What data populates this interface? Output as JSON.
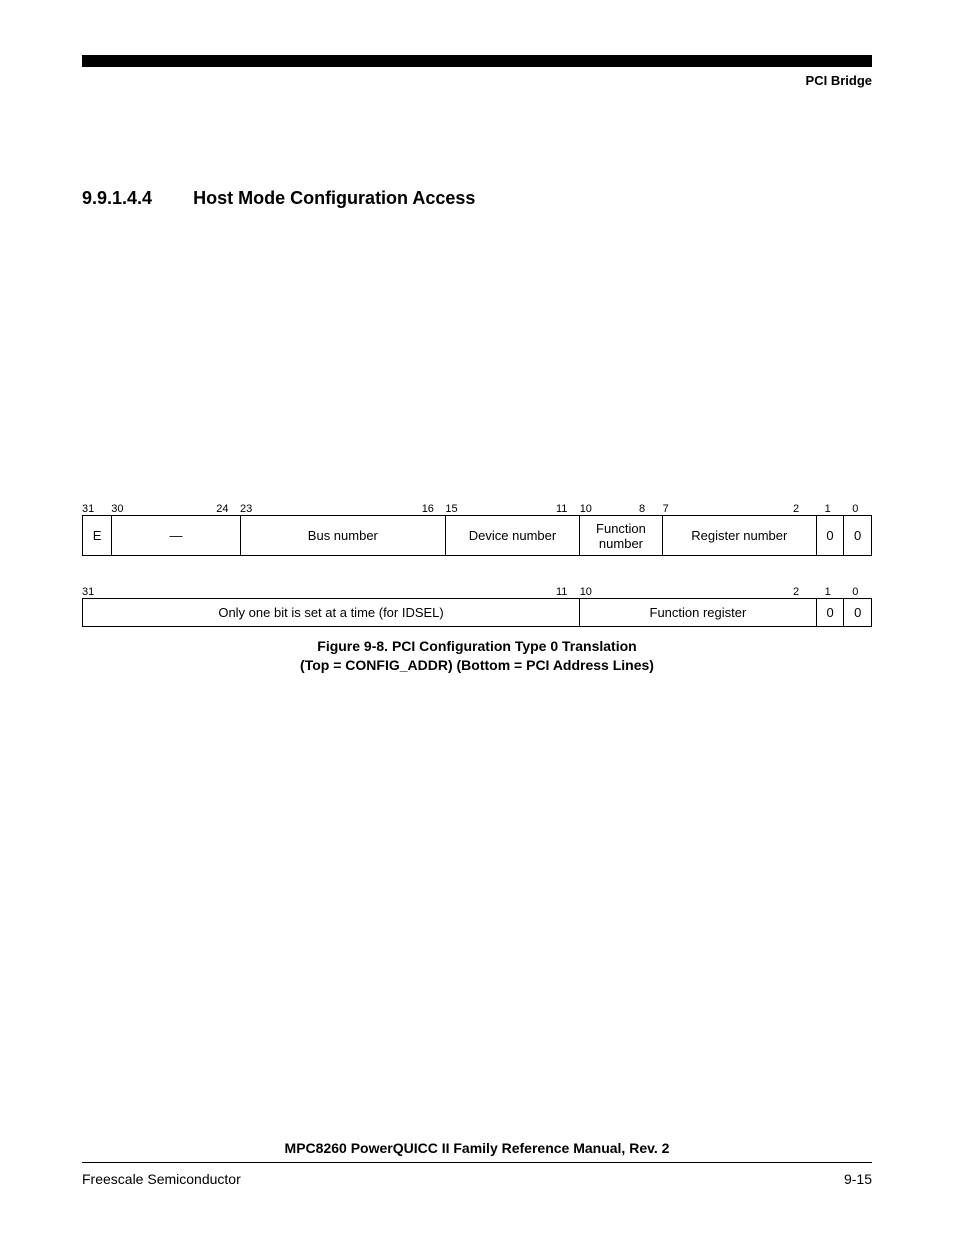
{
  "header": {
    "right": "PCI Bridge"
  },
  "section": {
    "number": "9.9.1.4.4",
    "title": "Host Mode Configuration Access"
  },
  "figure": {
    "top_bits": {
      "labels": [
        "31",
        "30",
        "24",
        "23",
        "16",
        "15",
        "11",
        "10",
        "8",
        "7",
        "2",
        "1",
        "0"
      ],
      "positions_pct": [
        0,
        3.7,
        17.0,
        20.0,
        43.0,
        46.0,
        60.0,
        63.0,
        70.5,
        73.5,
        90.0,
        94.0,
        97.5
      ]
    },
    "top_table": {
      "columns_pct": [
        3.7,
        16.3,
        26.0,
        17.0,
        10.5,
        19.5,
        3.5,
        3.5
      ],
      "cells": [
        "E",
        "—",
        "Bus number",
        "Device number",
        "Function number",
        "Register number",
        "0",
        "0"
      ]
    },
    "bot_bits": {
      "labels": [
        "31",
        "11",
        "10",
        "2",
        "1",
        "0"
      ],
      "positions_pct": [
        0,
        60.0,
        63.0,
        90.0,
        94.0,
        97.5
      ]
    },
    "bot_table": {
      "columns_pct": [
        63.0,
        30.0,
        3.5,
        3.5
      ],
      "cells": [
        "Only one bit is set at a time (for IDSEL)",
        "Function register",
        "0",
        "0"
      ]
    },
    "caption_l1": "Figure 9-8. PCI Configuration Type 0 Translation",
    "caption_l2": "(Top = CONFIG_ADDR) (Bottom = PCI Address Lines)"
  },
  "footer": {
    "title": "MPC8260 PowerQUICC II Family Reference Manual, Rev. 2",
    "left": "Freescale Semiconductor",
    "right": "9-15"
  }
}
